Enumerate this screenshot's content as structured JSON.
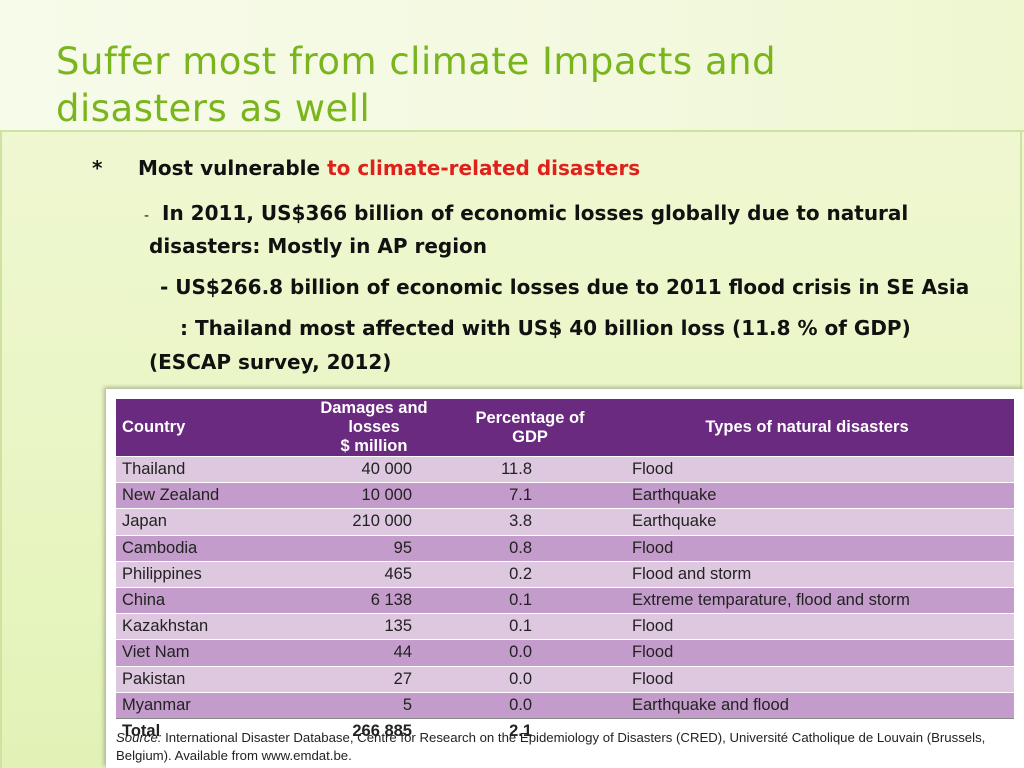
{
  "title": {
    "line1": "Suffer most from climate Impacts and",
    "line2": "disasters as well"
  },
  "bullets": {
    "main_marker": "*",
    "main_text": "Most vulnerable ",
    "main_highlight": "to climate-related disasters",
    "sub1_dash": "-",
    "sub1_line1": "In 2011, US$366 billion of economic losses globally due to natural",
    "sub1_line2": "disasters: Mostly in AP region",
    "sub2": "- US$266.8 billion of economic losses due to 2011 flood crisis in SE  Asia",
    "sub3_line1": ": Thailand most affected with US$ 40 billion loss (11.8 % of GDP)",
    "sub3_line2": "(ESCAP survey, 2012)"
  },
  "table": {
    "headers": {
      "country": "Country",
      "damages_line1": "Damages and losses",
      "damages_line2": "$ million",
      "percentage_line1": "Percentage of",
      "percentage_line2": "GDP",
      "types": "Types of natural disasters"
    },
    "rows": [
      {
        "country": "Thailand",
        "damages": "40 000",
        "percentage": "11.8",
        "types": "Flood"
      },
      {
        "country": "New Zealand",
        "damages": "10 000",
        "percentage": "7.1",
        "types": "Earthquake"
      },
      {
        "country": "Japan",
        "damages": "210 000",
        "percentage": "3.8",
        "types": "Earthquake"
      },
      {
        "country": "Cambodia",
        "damages": "95",
        "percentage": "0.8",
        "types": "Flood"
      },
      {
        "country": "Philippines",
        "damages": "465",
        "percentage": "0.2",
        "types": "Flood and storm"
      },
      {
        "country": "China",
        "damages": "6 138",
        "percentage": "0.1",
        "types": "Extreme temparature, flood and storm"
      },
      {
        "country": "Kazakhstan",
        "damages": "135",
        "percentage": "0.1",
        "types": "Flood"
      },
      {
        "country": "Viet Nam",
        "damages": "44",
        "percentage": "0.0",
        "types": "Flood"
      },
      {
        "country": "Pakistan",
        "damages": "27",
        "percentage": "0.0",
        "types": "Flood"
      },
      {
        "country": "Myanmar",
        "damages": "5",
        "percentage": "0.0",
        "types": "Earthquake and flood"
      }
    ],
    "total": {
      "label": "Total",
      "damages": "266 885",
      "percentage": "2.1"
    },
    "source_label": "Source:",
    "source_text": " International Disaster Database, Centre for Research on the Epidemiology of Disasters (CRED), Université Catholique de Louvain (Brussels, Belgium). Available from www.emdat.be."
  },
  "colors": {
    "title": "#7ab51d",
    "highlight": "#e0201b",
    "table_header": "#6a2a7f",
    "row_light": "#ddc8df",
    "row_dark": "#c49ccb"
  }
}
